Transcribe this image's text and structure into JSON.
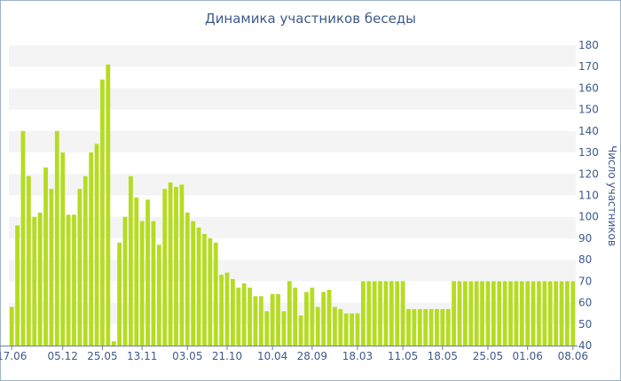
{
  "chart_data": {
    "type": "bar",
    "title": "Динамика участников беседы",
    "xlabel": "",
    "ylabel": "Число участников",
    "ylim": [
      40,
      180
    ],
    "yticks": [
      40,
      50,
      60,
      70,
      80,
      90,
      100,
      110,
      120,
      130,
      140,
      150,
      160,
      170,
      180
    ],
    "grid": "alternating horizontal bands",
    "y_axis_side": "right",
    "bar_color": "#b5dc21",
    "x_tick_labels": [
      {
        "label": "17.06",
        "bar_index": 0
      },
      {
        "label": "05.12",
        "bar_index": 9
      },
      {
        "label": "25.05",
        "bar_index": 16
      },
      {
        "label": "13.11",
        "bar_index": 23
      },
      {
        "label": "03.05",
        "bar_index": 31
      },
      {
        "label": "21.10",
        "bar_index": 38
      },
      {
        "label": "10.04",
        "bar_index": 46
      },
      {
        "label": "28.09",
        "bar_index": 53
      },
      {
        "label": "18.03",
        "bar_index": 61
      },
      {
        "label": "11.05",
        "bar_index": 69
      },
      {
        "label": "18.05",
        "bar_index": 76
      },
      {
        "label": "25.05",
        "bar_index": 84
      },
      {
        "label": "01.06",
        "bar_index": 91
      },
      {
        "label": "08.06",
        "bar_index": 99
      }
    ],
    "values": [
      58,
      96,
      140,
      119,
      100,
      102,
      123,
      113,
      140,
      130,
      101,
      101,
      113,
      119,
      130,
      134,
      164,
      171,
      42,
      88,
      100,
      119,
      109,
      98,
      108,
      98,
      87,
      113,
      116,
      114,
      115,
      102,
      98,
      95,
      92,
      90,
      88,
      73,
      74,
      71,
      67,
      69,
      67,
      63,
      63,
      56,
      64,
      64,
      56,
      70,
      67,
      54,
      65,
      67,
      58,
      65,
      66,
      58,
      57,
      55,
      55,
      55,
      70,
      70,
      70,
      70,
      70,
      70,
      70,
      70,
      57,
      57,
      57,
      57,
      57,
      57,
      57,
      57,
      70,
      70,
      70,
      70,
      70,
      70,
      70,
      70,
      70,
      70,
      70,
      70,
      70,
      70,
      70,
      70,
      70,
      70,
      70,
      70,
      70,
      70
    ]
  }
}
